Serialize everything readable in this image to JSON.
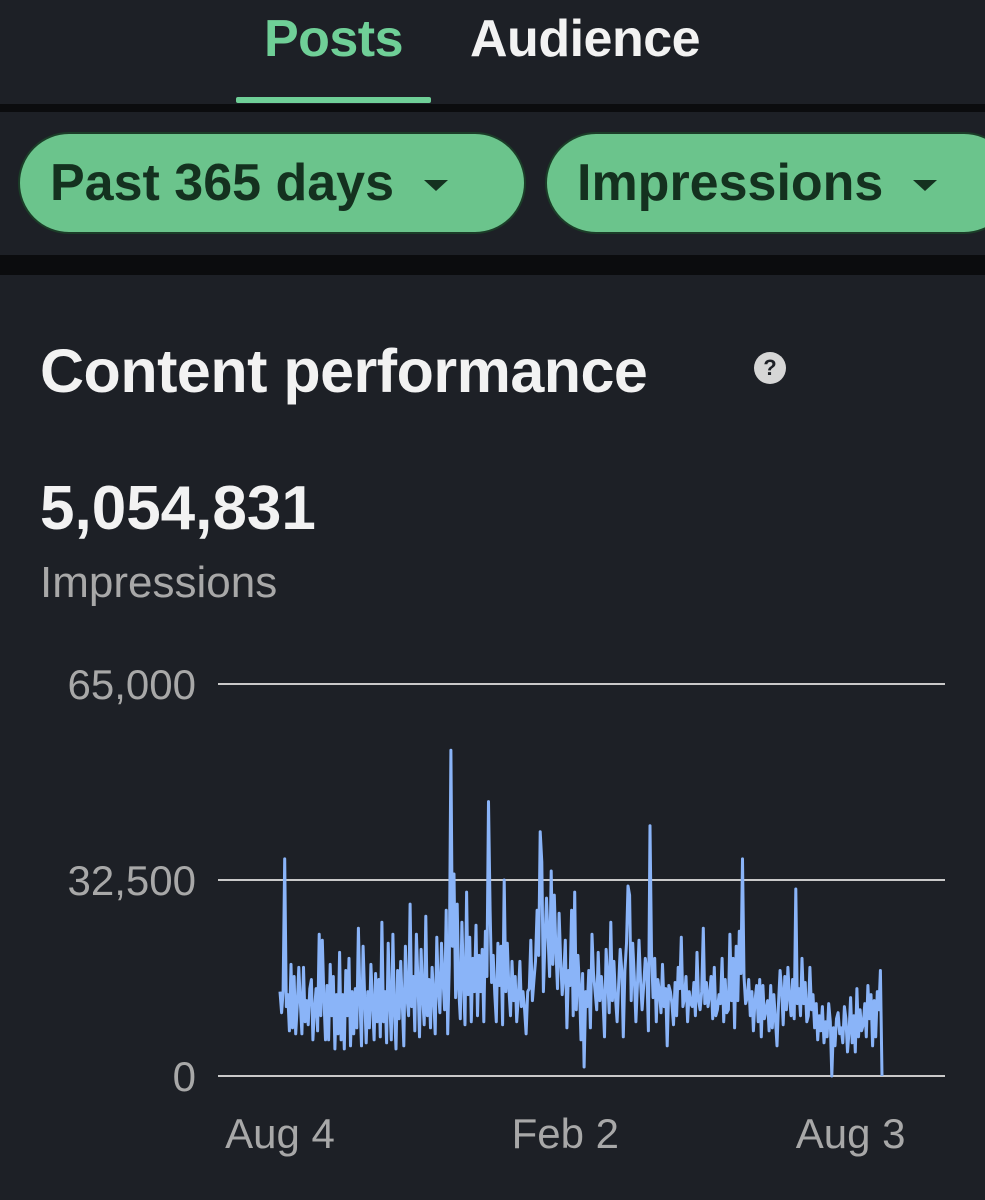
{
  "tabs": [
    {
      "label": "Posts",
      "active": true
    },
    {
      "label": "Audience",
      "active": false
    }
  ],
  "filters": {
    "range_label": "Past 365 days",
    "metric_label": "Impressions"
  },
  "content_performance": {
    "title": "Content performance",
    "help_icon": "?",
    "total_value": "5,054,831",
    "total_label": "Impressions"
  },
  "colors": {
    "accent_green": "#6bc48c",
    "line_blue": "#8ab4f8"
  },
  "chart_data": {
    "type": "line",
    "title": "",
    "xlabel": "",
    "ylabel": "",
    "ylim": [
      0,
      65000
    ],
    "yticks": [
      0,
      32500,
      65000
    ],
    "ytick_labels": [
      "0",
      "32,500",
      "65,000"
    ],
    "xtick_labels": [
      "Aug 4",
      "Feb 2",
      "Aug 3"
    ],
    "xtick_positions": [
      0,
      182,
      364
    ],
    "grid": true,
    "series": [
      {
        "values": [
          14000,
          10500,
          14000,
          36000,
          11500,
          13500,
          7500,
          18500,
          8000,
          16500,
          7000,
          11500,
          18000,
          12000,
          7000,
          18000,
          9000,
          12500,
          8500,
          14500,
          16000,
          6000,
          11000,
          14500,
          7500,
          23500,
          10000,
          22500,
          13000,
          6000,
          15000,
          6000,
          18500,
          10000,
          16500,
          4500,
          13500,
          7000,
          20500,
          6000,
          13500,
          4500,
          17500,
          10000,
          19500,
          5000,
          14000,
          7000,
          14500,
          8000,
          24500,
          12500,
          5000,
          21500,
          13000,
          5500,
          14000,
          8000,
          18500,
          12000,
          6000,
          17000,
          9000,
          16000,
          6500,
          25500,
          9000,
          14000,
          5500,
          22000,
          12500,
          6000,
          23500,
          11000,
          4500,
          17500,
          9500,
          19000,
          12000,
          5000,
          21500,
          13000,
          10000,
          28500,
          11500,
          16500,
          7500,
          23500,
          15500,
          6500,
          21000,
          13000,
          8500,
          26500,
          10000,
          16000,
          8000,
          18000,
          13500,
          7000,
          23000,
          14500,
          10500,
          22000,
          16000,
          11000,
          27500,
          7000,
          18500,
          54000,
          21500,
          33500,
          13000,
          28500,
          14500,
          9500,
          25500,
          16000,
          8500,
          30500,
          13500,
          23000,
          9000,
          19500,
          14000,
          25000,
          10000,
          20000,
          14000,
          21000,
          9000,
          24000,
          16500,
          45500,
          27500,
          15500,
          20000,
          13500,
          9000,
          22000,
          15000,
          21500,
          8500,
          32500,
          14000,
          22000,
          14500,
          10000,
          19000,
          12500,
          16500,
          9000,
          13000,
          19000,
          11500,
          14000,
          11000,
          7000,
          14000,
          14500,
          22500,
          12500,
          16000,
          19000,
          27500,
          20000,
          40500,
          35500,
          14000,
          22000,
          29500,
          23000,
          16500,
          34000,
          18500,
          30000,
          21000,
          14500,
          27000,
          19500,
          13500,
          17000,
          22500,
          8000,
          17500,
          15000,
          27500,
          10000,
          30500,
          11000,
          20000,
          15000,
          6000,
          17000,
          1500,
          14000,
          11500,
          17500,
          8000,
          23500,
          17000,
          14000,
          11000,
          20500,
          12500,
          16500,
          13000,
          6500,
          21000,
          16000,
          10500,
          25500,
          12500,
          19000,
          13000,
          9000,
          15000,
          21000,
          17500,
          6500,
          17500,
          22000,
          31500,
          30000,
          12500,
          22000,
          16500,
          9000,
          15000,
          22500,
          15500,
          11000,
          15000,
          19500,
          17500,
          7500,
          41500,
          20500,
          13000,
          19500,
          9000,
          16000,
          14000,
          10500,
          18500,
          11500,
          14500,
          5000,
          15000,
          14000,
          12000,
          8500,
          15500,
          10000,
          18000,
          14500,
          23000,
          11500,
          13000,
          16500,
          9000,
          14000,
          12000,
          11500,
          15500,
          10000,
          20500,
          12500,
          11000,
          14000,
          24500,
          12000,
          15500,
          11500,
          13500,
          16500,
          9500,
          18000,
          10000,
          11000,
          13500,
          12000,
          19500,
          9000,
          16000,
          10500,
          11000,
          23500,
          12500,
          19500,
          8000,
          21500,
          12500,
          24000,
          17000,
          36000,
          16500,
          12000,
          13000,
          16000,
          10000,
          14000,
          7500,
          12500,
          15000,
          9000,
          16000,
          6500,
          15000,
          9500,
          11000,
          12500,
          7500,
          15000,
          8000,
          13500,
          9500,
          5000,
          12000,
          17500,
          14000,
          8500,
          16500,
          11000,
          18000,
          13000,
          10000,
          16000,
          9500,
          31000,
          12000,
          14500,
          10000,
          19500,
          12000,
          15500,
          9000,
          10000,
          18000,
          11000,
          13500,
          8000,
          12000,
          6000,
          10000,
          7500,
          11500,
          5500,
          9000,
          6500,
          12000,
          9000,
          0,
          8000,
          5000,
          9500,
          10500,
          7000,
          8000,
          5500,
          11500,
          9500,
          4000,
          7500,
          13000,
          5500,
          10000,
          4000,
          14500,
          6500,
          11000,
          7500,
          8500,
          12000,
          6500,
          15000,
          9500,
          13500,
          5000,
          12500,
          6500,
          14000,
          11000,
          17500,
          0
        ]
      }
    ]
  }
}
